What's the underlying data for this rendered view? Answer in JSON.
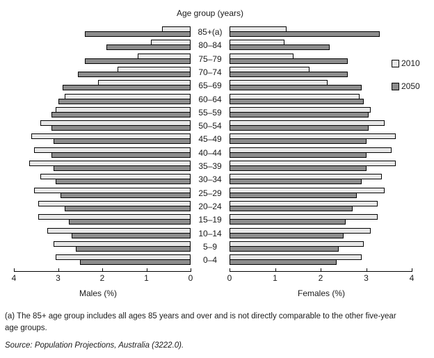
{
  "title": "Age group (years)",
  "legend": [
    {
      "label": "2010",
      "color": "#e8e8e8"
    },
    {
      "label": "2050",
      "color": "#8c8c8c"
    }
  ],
  "axes": {
    "male": {
      "label": "Males (%)",
      "ticks": [
        4,
        3,
        2,
        1,
        0
      ],
      "min": 0,
      "max": 4
    },
    "female": {
      "label": "Females (%)",
      "ticks": [
        0,
        1,
        2,
        3,
        4
      ],
      "min": 0,
      "max": 4
    }
  },
  "footnote_line1": "(a) The 85+ age group includes all ages 85 years and over and is not directly comparable to the other five-year",
  "footnote_line2": "age groups.",
  "source": "Source: Population Projections, Australia (3222.0).",
  "chart_data": {
    "type": "bar",
    "subtype": "population-pyramid",
    "title": "Age group (years)",
    "xlabel_left": "Males (%)",
    "xlabel_right": "Females (%)",
    "xlim": [
      0,
      4
    ],
    "grid": false,
    "legend_position": "right",
    "categories": [
      "85+(a)",
      "80–84",
      "75–79",
      "70–74",
      "65–69",
      "60–64",
      "55–59",
      "50–54",
      "45–49",
      "40–44",
      "35–39",
      "30–34",
      "25–29",
      "20–24",
      "15–19",
      "10–14",
      "5–9",
      "0–4"
    ],
    "series": [
      {
        "name": "Males 2010",
        "side": "left",
        "color": "#e8e8e8",
        "values": [
          0.65,
          0.9,
          1.2,
          1.65,
          2.1,
          2.85,
          3.05,
          3.4,
          3.6,
          3.55,
          3.65,
          3.4,
          3.55,
          3.45,
          3.45,
          3.25,
          3.1,
          3.05
        ]
      },
      {
        "name": "Males 2050",
        "side": "left",
        "color": "#8c8c8c",
        "values": [
          2.4,
          1.9,
          2.4,
          2.55,
          2.9,
          3.0,
          3.15,
          3.15,
          3.1,
          3.15,
          3.1,
          3.05,
          2.95,
          2.85,
          2.75,
          2.7,
          2.6,
          2.5
        ]
      },
      {
        "name": "Females 2010",
        "side": "right",
        "color": "#e8e8e8",
        "values": [
          1.25,
          1.2,
          1.4,
          1.75,
          2.15,
          2.85,
          3.1,
          3.4,
          3.65,
          3.55,
          3.65,
          3.35,
          3.4,
          3.25,
          3.25,
          3.1,
          2.95,
          2.9
        ]
      },
      {
        "name": "Females 2050",
        "side": "right",
        "color": "#8c8c8c",
        "values": [
          3.3,
          2.2,
          2.6,
          2.6,
          2.9,
          2.95,
          3.05,
          3.05,
          3.0,
          3.0,
          3.0,
          2.9,
          2.8,
          2.7,
          2.55,
          2.5,
          2.4,
          2.35
        ]
      }
    ]
  }
}
